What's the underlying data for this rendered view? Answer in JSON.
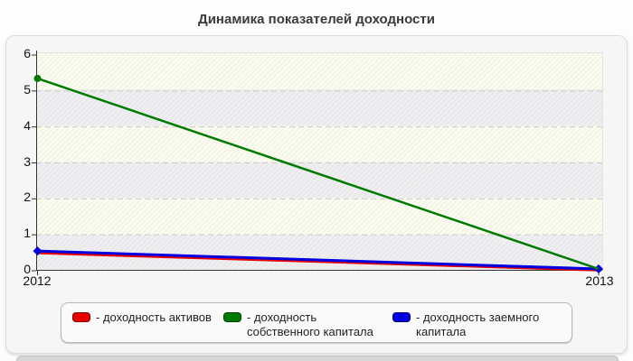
{
  "title": "Динамика показателей доходности",
  "chart_data": {
    "type": "line",
    "title": "Динамика показателей доходности",
    "x": [
      "2012",
      "2013"
    ],
    "series": [
      {
        "name": "доходность активов",
        "color": "#e60000",
        "values": [
          0.5,
          0.02
        ],
        "marker": "none"
      },
      {
        "name": "доходность собственного капитала",
        "color": "#007a00",
        "values": [
          5.35,
          0.05
        ],
        "marker": "circle-start"
      },
      {
        "name": "доходность заемного капитала",
        "color": "#0000e0",
        "values": [
          0.55,
          0.05
        ],
        "marker": "diamond"
      }
    ],
    "ylim": [
      0,
      6
    ],
    "yticks": [
      0,
      1,
      2,
      3,
      4,
      5,
      6
    ],
    "grid": "horizontal-dashed",
    "grid_color": "#cccccc",
    "axis_color": "#333333",
    "legend_position": "bottom",
    "plot_background": "hatched-alternating-bands"
  },
  "legend": {
    "items": [
      {
        "label": "- доходность активов",
        "color": "#e60000"
      },
      {
        "label": "- доходность собственного капитала",
        "color": "#007a00"
      },
      {
        "label": "- доходность заемного капитала",
        "color": "#0000e0"
      }
    ]
  }
}
